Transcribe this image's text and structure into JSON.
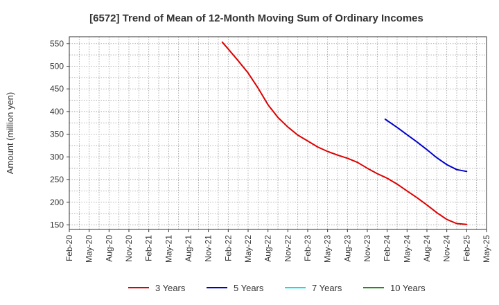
{
  "chart_data": {
    "type": "line",
    "title": "[6572]  Trend of Mean of 12-Month Moving Sum of Ordinary Incomes",
    "xlabel": "",
    "ylabel": "Amount (million yen)",
    "ylim": [
      140,
      565
    ],
    "yticks": [
      150,
      200,
      250,
      300,
      350,
      400,
      450,
      500,
      550
    ],
    "grid": true,
    "legend_position": "bottom",
    "x_categories": [
      "Feb-20",
      "May-20",
      "Aug-20",
      "Nov-20",
      "Feb-21",
      "May-21",
      "Aug-21",
      "Nov-21",
      "Feb-22",
      "May-22",
      "Aug-22",
      "Nov-22",
      "Feb-23",
      "May-23",
      "Aug-23",
      "Nov-23",
      "Feb-24",
      "May-24",
      "Aug-24",
      "Nov-24",
      "Feb-25",
      "May-25"
    ],
    "series": [
      {
        "name": "3 Years",
        "color": "#dd0000",
        "x_index": [
          7.7,
          8,
          8.5,
          9,
          9.5,
          10,
          10.5,
          11,
          11.5,
          12,
          12.5,
          13,
          13.5,
          14,
          14.5,
          15,
          15.5,
          16,
          16.5,
          17,
          17.5,
          18,
          18.5,
          19,
          19.5,
          20
        ],
        "values": [
          553,
          538,
          512,
          485,
          452,
          415,
          387,
          366,
          348,
          335,
          322,
          312,
          304,
          297,
          288,
          275,
          263,
          253,
          240,
          225,
          210,
          194,
          177,
          162,
          153,
          151
        ]
      },
      {
        "name": "5 Years",
        "color": "#0000cc",
        "x_index": [
          15.9,
          16.5,
          17,
          17.5,
          18,
          18.5,
          19,
          19.5,
          20
        ],
        "values": [
          383,
          365,
          349,
          333,
          316,
          298,
          283,
          272,
          268
        ]
      },
      {
        "name": "7 Years",
        "color": "#00e5ee",
        "x_index": [],
        "values": []
      },
      {
        "name": "10 Years",
        "color": "#228b22",
        "x_index": [],
        "values": []
      }
    ]
  }
}
